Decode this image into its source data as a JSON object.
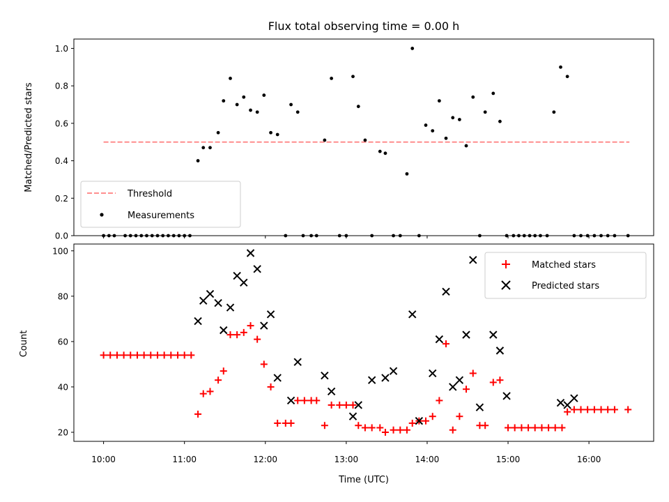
{
  "chart_data": [
    {
      "type": "scatter",
      "title": "Flux total observing time = 0.00 h",
      "xlabel": "",
      "ylabel": "Matched/Predicted stars",
      "ylim": [
        0,
        1.05
      ],
      "yticks": [
        "0.0",
        "0.2",
        "0.4",
        "0.6",
        "0.8",
        "1.0"
      ],
      "xlim_hours": [
        9.633,
        16.8
      ],
      "threshold": {
        "label": "Threshold",
        "value": 0.5,
        "x_range_hours": [
          10.0,
          16.5
        ],
        "color": "#ff7f7f"
      },
      "measurements": {
        "label": "Measurements",
        "color": "#000000",
        "x_hours": [
          10.0,
          10.067,
          10.133,
          10.267,
          10.333,
          10.4,
          10.467,
          10.533,
          10.6,
          10.667,
          10.733,
          10.8,
          10.867,
          10.933,
          11.0,
          11.067,
          11.167,
          11.233,
          11.317,
          11.417,
          11.483,
          11.567,
          11.65,
          11.733,
          11.817,
          11.9,
          11.983,
          12.067,
          12.15,
          12.25,
          12.317,
          12.4,
          12.467,
          12.567,
          12.633,
          12.733,
          12.817,
          12.917,
          13.0,
          13.083,
          13.15,
          13.233,
          13.317,
          13.417,
          13.483,
          13.583,
          13.667,
          13.75,
          13.817,
          13.9,
          13.983,
          14.067,
          14.15,
          14.233,
          14.317,
          14.4,
          14.483,
          14.567,
          14.65,
          14.717,
          14.817,
          14.9,
          14.983,
          15.067,
          15.133,
          15.2,
          15.267,
          15.333,
          15.4,
          15.483,
          15.567,
          15.65,
          15.733,
          15.817,
          15.9,
          15.983,
          16.067,
          16.15,
          16.233,
          16.317,
          16.483
        ],
        "y": [
          0,
          0,
          0,
          0,
          0,
          0,
          0,
          0,
          0,
          0,
          0,
          0,
          0,
          0,
          0,
          0,
          0.4,
          0.47,
          0.47,
          0.55,
          0.72,
          0.84,
          0.7,
          0.74,
          0.67,
          0.66,
          0.75,
          0.55,
          0.54,
          0,
          0.7,
          0.66,
          0,
          0,
          0,
          0.51,
          0.84,
          0,
          0,
          0.85,
          0.69,
          0.51,
          0,
          0.45,
          0.44,
          0,
          0,
          0.33,
          1.0,
          0,
          0.59,
          0.56,
          0.72,
          0.52,
          0.63,
          0.62,
          0.48,
          0.74,
          0,
          0.66,
          0.76,
          0.61,
          0,
          0,
          0,
          0,
          0,
          0,
          0,
          0,
          0.66,
          0.9,
          0.85,
          0,
          0,
          0,
          0,
          0,
          0,
          0,
          0
        ]
      },
      "legend": {
        "location": "lower-left",
        "entries": [
          "Threshold",
          "Measurements"
        ]
      }
    },
    {
      "type": "scatter",
      "title": "",
      "xlabel": "Time (UTC)",
      "ylabel": "Count",
      "ylim": [
        16,
        103
      ],
      "yticks": [
        "20",
        "40",
        "60",
        "80",
        "100"
      ],
      "xticks": [
        "10:00",
        "11:00",
        "12:00",
        "13:00",
        "14:00",
        "15:00",
        "16:00"
      ],
      "xlim_hours": [
        9.633,
        16.8
      ],
      "series": [
        {
          "name": "Matched stars",
          "marker": "+",
          "color": "#ff0000",
          "x_hours": [
            10.0,
            10.083,
            10.167,
            10.25,
            10.333,
            10.417,
            10.5,
            10.583,
            10.667,
            10.75,
            10.833,
            10.917,
            11.0,
            11.083,
            11.167,
            11.233,
            11.317,
            11.417,
            11.483,
            11.567,
            11.65,
            11.733,
            11.817,
            11.9,
            11.983,
            12.067,
            12.15,
            12.25,
            12.317,
            12.4,
            12.483,
            12.567,
            12.633,
            12.733,
            12.817,
            12.917,
            13.0,
            13.083,
            13.15,
            13.233,
            13.317,
            13.417,
            13.483,
            13.583,
            13.667,
            13.75,
            13.817,
            13.9,
            13.983,
            14.067,
            14.15,
            14.233,
            14.317,
            14.4,
            14.483,
            14.567,
            14.65,
            14.717,
            14.817,
            14.9,
            15.0,
            15.083,
            15.167,
            15.25,
            15.333,
            15.417,
            15.5,
            15.583,
            15.667,
            15.733,
            15.817,
            15.9,
            15.983,
            16.067,
            16.15,
            16.233,
            16.317,
            16.483
          ],
          "y": [
            54,
            54,
            54,
            54,
            54,
            54,
            54,
            54,
            54,
            54,
            54,
            54,
            54,
            54,
            28,
            37,
            38,
            43,
            47,
            63,
            63,
            64,
            67,
            61,
            50,
            40,
            24,
            24,
            24,
            34,
            34,
            34,
            34,
            23,
            32,
            32,
            32,
            32,
            23,
            22,
            22,
            22,
            20,
            21,
            21,
            21,
            24,
            25,
            25,
            27,
            34,
            59,
            21,
            27,
            39,
            46,
            23,
            23,
            42,
            43,
            22,
            22,
            22,
            22,
            22,
            22,
            22,
            22,
            22,
            29,
            30,
            30,
            30,
            30,
            30,
            30,
            30,
            30
          ]
        },
        {
          "name": "Predicted stars",
          "marker": "x",
          "color": "#000000",
          "x_hours": [
            11.167,
            11.233,
            11.317,
            11.417,
            11.483,
            11.567,
            11.65,
            11.733,
            11.817,
            11.9,
            11.983,
            12.067,
            12.15,
            12.317,
            12.4,
            12.733,
            12.817,
            13.083,
            13.15,
            13.317,
            13.483,
            13.583,
            13.817,
            13.9,
            14.067,
            14.15,
            14.233,
            14.317,
            14.4,
            14.483,
            14.567,
            14.65,
            14.817,
            14.9,
            14.983,
            15.65,
            15.733,
            15.817
          ],
          "y": [
            69,
            78,
            81,
            77,
            65,
            75,
            89,
            86,
            99,
            92,
            67,
            72,
            44,
            34,
            51,
            45,
            38,
            27,
            32,
            43,
            44,
            47,
            72,
            25,
            46,
            61,
            82,
            40,
            43,
            63,
            96,
            31,
            63,
            56,
            36,
            33,
            32,
            35
          ]
        }
      ],
      "legend": {
        "location": "top-right",
        "entries": [
          "Matched stars",
          "Predicted stars"
        ]
      }
    }
  ]
}
